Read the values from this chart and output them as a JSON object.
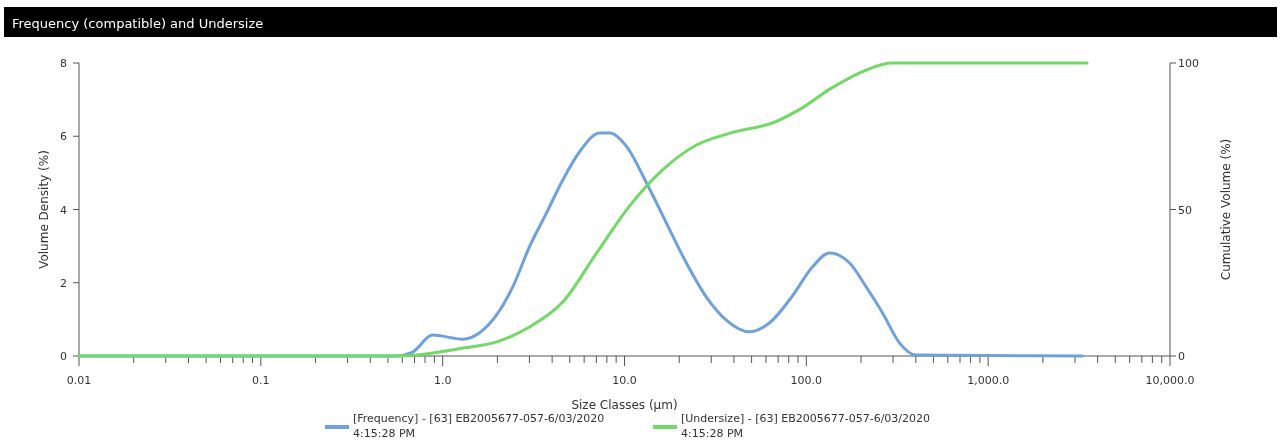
{
  "chart_data": {
    "type": "line",
    "title": "Frequency (compatible) and Undersize",
    "xlabel": "Size Classes (µm)",
    "ylabel": "Volume Density (%)",
    "y2label": "Cumulative Volume (%)",
    "log": "x",
    "legend": "bottom",
    "grid": false,
    "marker": "none",
    "line_style": "solid",
    "xlim": [
      0.01,
      10000
    ],
    "xticks": [
      0.01,
      0.1,
      {
        "value": 1,
        "label": "1.0"
      },
      {
        "value": 10,
        "label": "10.0"
      },
      {
        "value": 100,
        "label": "100.0"
      },
      {
        "value": 1000,
        "label": "1,000.0"
      },
      {
        "value": 10000,
        "label": "10,000.0"
      },
      {
        "value": 0.02,
        "label": null
      },
      {
        "value": 0.03,
        "label": null
      },
      {
        "value": 0.04,
        "label": null
      },
      {
        "value": 0.05,
        "label": null
      },
      {
        "value": 0.06,
        "label": null
      },
      {
        "value": 0.07,
        "label": null
      },
      {
        "value": 0.08,
        "label": null
      },
      {
        "value": 0.09,
        "label": null
      },
      {
        "value": 0.2,
        "label": null
      },
      {
        "value": 0.3,
        "label": null
      },
      {
        "value": 0.4,
        "label": null
      },
      {
        "value": 0.5,
        "label": null
      },
      {
        "value": 0.6,
        "label": null
      },
      {
        "value": 0.7,
        "label": null
      },
      {
        "value": 0.8,
        "label": null
      },
      {
        "value": 0.9,
        "label": null
      },
      {
        "value": 2,
        "label": null
      },
      {
        "value": 3,
        "label": null
      },
      {
        "value": 4,
        "label": null
      },
      {
        "value": 5,
        "label": null
      },
      {
        "value": 6,
        "label": null
      },
      {
        "value": 7,
        "label": null
      },
      {
        "value": 8,
        "label": null
      },
      {
        "value": 9,
        "label": null
      },
      {
        "value": 20,
        "label": null
      },
      {
        "value": 30,
        "label": null
      },
      {
        "value": 40,
        "label": null
      },
      {
        "value": 50,
        "label": null
      },
      {
        "value": 60,
        "label": null
      },
      {
        "value": 70,
        "label": null
      },
      {
        "value": 80,
        "label": null
      },
      {
        "value": 90,
        "label": null
      },
      {
        "value": 200,
        "label": null
      },
      {
        "value": 300,
        "label": null
      },
      {
        "value": 400,
        "label": null
      },
      {
        "value": 500,
        "label": null
      },
      {
        "value": 600,
        "label": null
      },
      {
        "value": 700,
        "label": null
      },
      {
        "value": 800,
        "label": null
      },
      {
        "value": 900,
        "label": null
      },
      {
        "value": 2000,
        "label": null
      },
      {
        "value": 3000,
        "label": null
      },
      {
        "value": 4000,
        "label": null
      },
      {
        "value": 5000,
        "label": null
      },
      {
        "value": 6000,
        "label": null
      },
      {
        "value": 7000,
        "label": null
      },
      {
        "value": 8000,
        "label": null
      },
      {
        "value": 9000,
        "label": null
      }
    ],
    "ylim": [
      0,
      8
    ],
    "yticks": [
      0,
      2,
      4,
      6,
      8
    ],
    "y2lim": [
      0,
      100
    ],
    "y2ticks": [
      0,
      50,
      100
    ],
    "series": [
      {
        "name": "[Frequency] - [63] EB2005677-057-6/03/2020 4:15:28 PM",
        "color": "#6fa1dc",
        "x": [
          0.01,
          0.55,
          0.68,
          0.88,
          1.29,
          1.59,
          1.98,
          2.43,
          3.0,
          3.72,
          4.57,
          5.65,
          7.3,
          8.3,
          10.3,
          13.2,
          17.0,
          21.9,
          28.2,
          36.3,
          48.7,
          62.6,
          83,
          108,
          134,
          173,
          213,
          263,
          325,
          400,
          3300
        ],
        "values": [
          0,
          0,
          0.1,
          0.57,
          0.46,
          0.63,
          1.12,
          1.89,
          2.98,
          3.9,
          4.8,
          5.57,
          6.09,
          6.09,
          5.71,
          4.73,
          3.63,
          2.54,
          1.61,
          0.98,
          0.66,
          0.9,
          1.61,
          2.43,
          2.81,
          2.54,
          1.89,
          1.17,
          0.36,
          0.03,
          0
        ]
      },
      {
        "name": "[Undersize] - [63] EB2005677-057-6/03/2020 4:15:28 PM",
        "color": "#72d866",
        "axis": "y2",
        "x": [
          0.01,
          0.6,
          0.68,
          1.29,
          1.98,
          3.0,
          4.57,
          7.0,
          10.6,
          16.2,
          24.9,
          37.7,
          68,
          91,
          138,
          213,
          295,
          3500
        ],
        "values": [
          0,
          0,
          0.2,
          2.7,
          4.8,
          9.9,
          18.4,
          35,
          51,
          63.5,
          72,
          76,
          80,
          84,
          91.5,
          97.6,
          100,
          100
        ]
      }
    ]
  }
}
